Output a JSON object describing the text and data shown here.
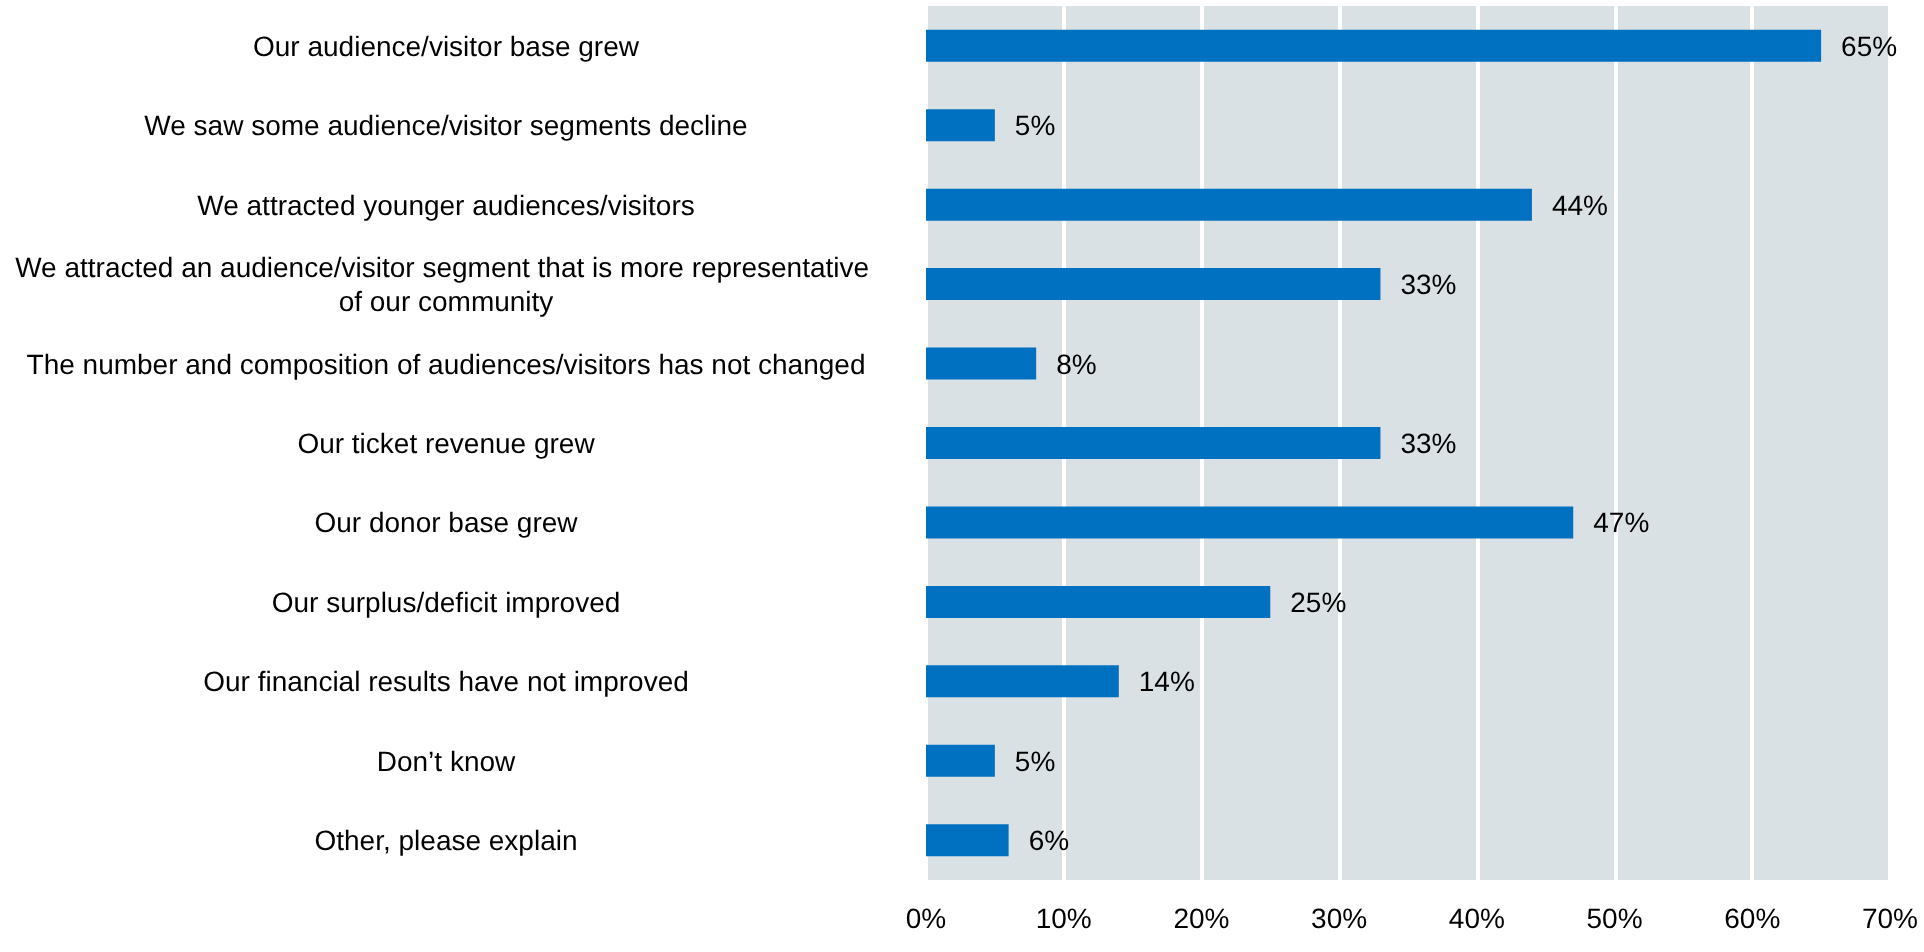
{
  "chart_data": {
    "type": "bar",
    "orientation": "horizontal",
    "categories": [
      "Our audience/visitor base grew",
      "We saw some audience/visitor segments decline",
      "We attracted younger audiences/visitors",
      "We attracted an audience/visitor segment that is more representative of our community",
      "The number and composition of audiences/visitors has not changed",
      "Our ticket revenue grew",
      "Our donor base grew",
      "Our surplus/deficit improved",
      "Our financial results have not improved",
      "Don’t know",
      "Other, please explain"
    ],
    "values": [
      65,
      5,
      44,
      33,
      8,
      33,
      47,
      25,
      14,
      5,
      6
    ],
    "value_labels": [
      "65%",
      "5%",
      "44%",
      "33%",
      "8%",
      "33%",
      "47%",
      "25%",
      "14%",
      "5%",
      "6%"
    ],
    "color": "#0070c0",
    "xlim": [
      0,
      70
    ],
    "xticks": [
      {
        "value": 0,
        "label": "0%"
      },
      {
        "value": 10,
        "label": "10%"
      },
      {
        "value": 20,
        "label": "20%"
      },
      {
        "value": 30,
        "label": "30%"
      },
      {
        "value": 40,
        "label": "40%"
      },
      {
        "value": 50,
        "label": "50%"
      },
      {
        "value": 60,
        "label": "60%"
      },
      {
        "value": 70,
        "label": "70%"
      }
    ],
    "grid": "x"
  }
}
